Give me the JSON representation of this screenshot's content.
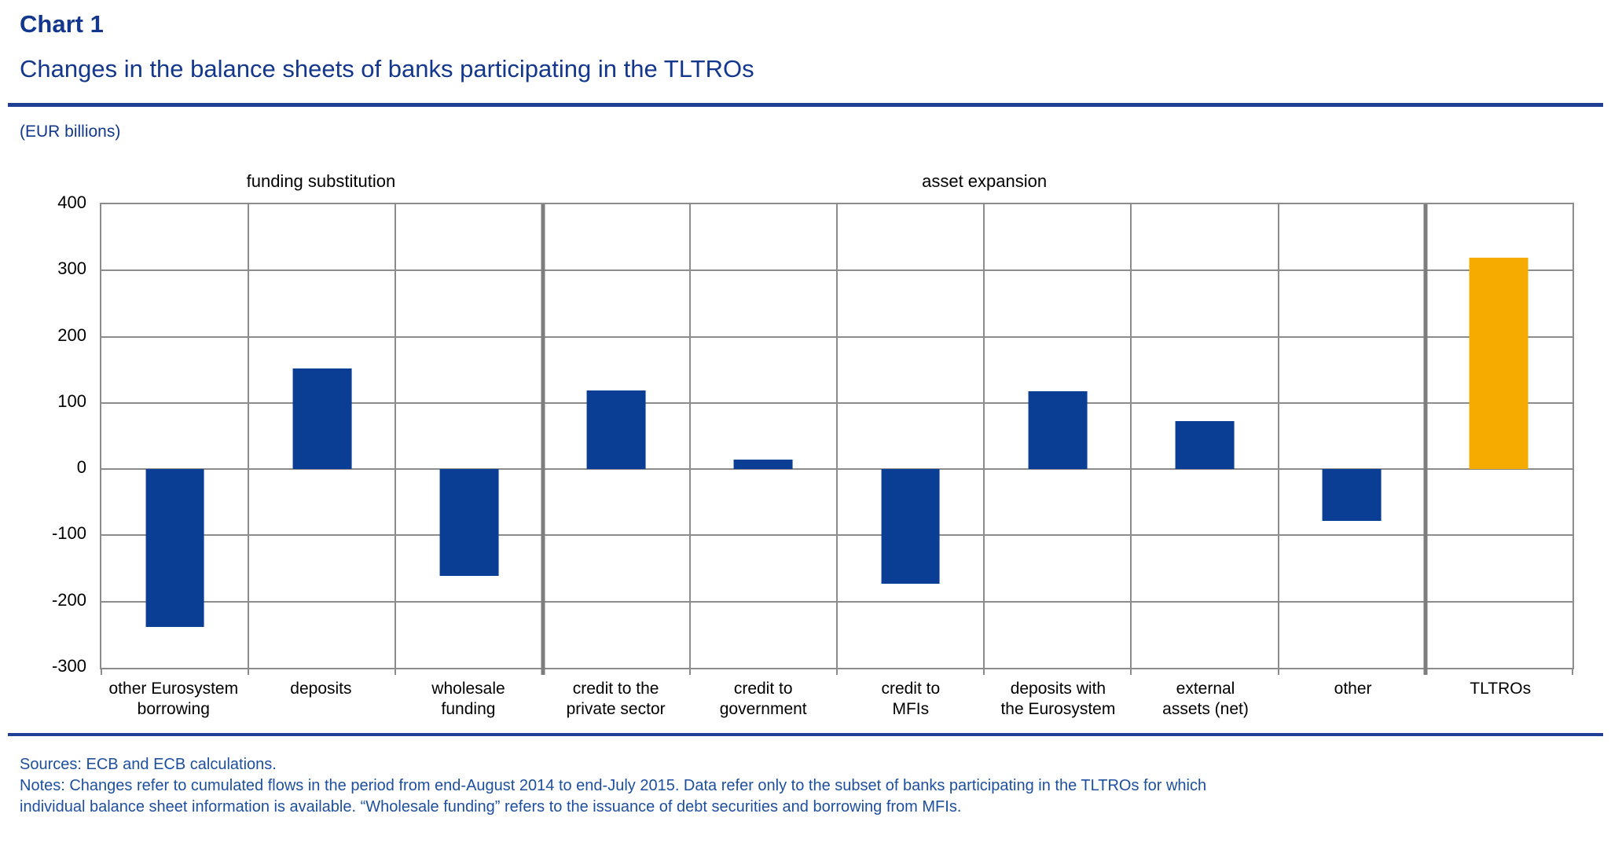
{
  "header": {
    "chart_label": "Chart 1",
    "title": "Changes in the balance sheets of banks participating in the TLTROs",
    "units": "(EUR billions)"
  },
  "chart_data": {
    "type": "bar",
    "title": "Changes in the balance sheets of banks participating in the TLTROs",
    "unit": "EUR billions",
    "categories": [
      "other Eurosystem borrowing",
      "deposits",
      "wholesale funding",
      "credit to the private sector",
      "credit to government",
      "credit to MFIs",
      "deposits with the Eurosystem",
      "external assets (net)",
      "other",
      "TLTROs"
    ],
    "category_lines": [
      [
        "other Eurosystem",
        "borrowing"
      ],
      [
        "deposits"
      ],
      [
        "wholesale",
        "funding"
      ],
      [
        "credit to the",
        "private sector"
      ],
      [
        "credit to",
        "government"
      ],
      [
        "credit to",
        "MFIs"
      ],
      [
        "deposits with",
        "the Eurosystem"
      ],
      [
        "external",
        "assets (net)"
      ],
      [
        "other"
      ],
      [
        "TLTROs"
      ]
    ],
    "values": [
      -238,
      152,
      -161,
      119,
      14,
      -173,
      118,
      72,
      -78,
      319
    ],
    "bar_colors": [
      "#0a3e94",
      "#0a3e94",
      "#0a3e94",
      "#0a3e94",
      "#0a3e94",
      "#0a3e94",
      "#0a3e94",
      "#0a3e94",
      "#0a3e94",
      "#f6ab00"
    ],
    "groups": [
      {
        "label": "funding substitution",
        "start": 0,
        "end": 2
      },
      {
        "label": "asset expansion",
        "start": 3,
        "end": 8
      }
    ],
    "thick_separators": [
      3,
      9
    ],
    "ylim": [
      -300,
      400
    ],
    "yticks": [
      400,
      300,
      200,
      100,
      0,
      -100,
      -200,
      -300
    ],
    "grid": true,
    "legend": "none"
  },
  "footer": {
    "sources": "Sources: ECB and ECB calculations.",
    "notes": "Notes: Changes refer to cumulated flows in the period from end-August 2014 to end-July 2015. Data refer only to the subset of banks participating in the TLTROs for which individual balance sheet information is available. “Wholesale funding” refers to the issuance of debt securities and borrowing from MFIs."
  },
  "colors": {
    "bar_blue": "#0a3e94",
    "bar_amber": "#f6ab00",
    "title_navy": "#13378c",
    "footer_navy": "#1d4f9e",
    "rule_navy": "#1f3f94",
    "grid_gray": "#8c8c8c"
  }
}
